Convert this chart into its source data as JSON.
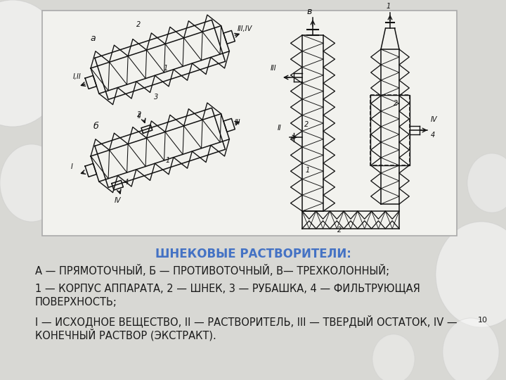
{
  "bg_color": "#d8d8d4",
  "box_bg": "#f2f2ee",
  "box_edge": "#aaaaaa",
  "title_text": "ШНЕКОВЫЕ РАСТВОРИТЕЛИ:",
  "title_color": "#4472c4",
  "line1": "А — ПРЯМОТОЧНЫЙ, Б — ПРОТИВОТОЧНЫЙ, В— ТРЕХКОЛОННЫЙ;",
  "line2a": "1 — КОРПУС АППАРАТА, 2 — ШНЕК, 3 — РУБАШКА, 4 — ФИЛЬТРУЮЩАЯ",
  "line2b": "ПОВЕРХНОСТЬ;",
  "line3a": "I — ИСХОДНОЕ ВЕЩЕСТВО, II — РАСТВОРИТЕЛЬ, III — ТВЕРДЫЙ ОСТАТОК, IV —",
  "line3b": "КОНЕЧНЫЙ РАСТВОР (ЭКСТРАКТ).",
  "page_num": "10",
  "text_color": "#1a1a1a",
  "font_size_title": 12,
  "font_size_body": 10.5
}
